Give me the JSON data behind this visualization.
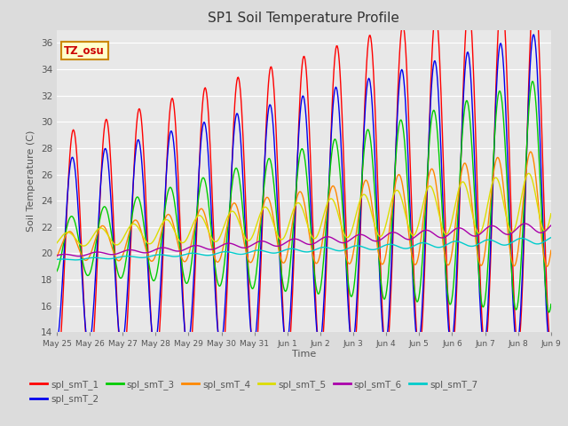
{
  "title": "SP1 Soil Temperature Profile",
  "xlabel": "Time",
  "ylabel": "Soil Temperature (C)",
  "ylim": [
    14,
    37
  ],
  "yticks": [
    14,
    16,
    18,
    20,
    22,
    24,
    26,
    28,
    30,
    32,
    34,
    36
  ],
  "tz_label": "TZ_osu",
  "series_colors": {
    "spl_smT_1": "#ff0000",
    "spl_smT_2": "#0000ee",
    "spl_smT_3": "#00cc00",
    "spl_smT_4": "#ff8800",
    "spl_smT_5": "#dddd00",
    "spl_smT_6": "#aa00aa",
    "spl_smT_7": "#00cccc"
  },
  "bg_color": "#dcdcdc",
  "plot_bg": "#e8e8e8",
  "x_tick_labels": [
    "May 25",
    "May 26",
    "May 27",
    "May 28",
    "May 29",
    "May 30",
    "May 31",
    "Jun 1",
    "Jun 2",
    "Jun 3",
    "Jun 4",
    "Jun 5",
    "Jun 6",
    "Jun 7",
    "Jun 8",
    "Jun 9"
  ]
}
